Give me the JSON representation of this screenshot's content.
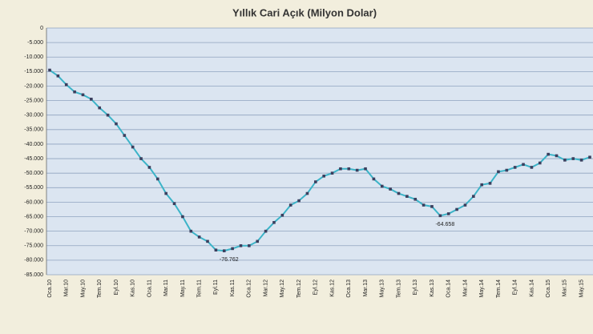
{
  "chart_data": {
    "type": "line",
    "title": "Yıllık Cari Açık (Milyon Dolar)",
    "categories": [
      "Oca.10",
      null,
      "Mar.10",
      null,
      "May.10",
      null,
      "Tem.10",
      null,
      "Eyl.10",
      null,
      "Kas.10",
      null,
      "Oca.11",
      null,
      "Mar.11",
      null,
      "May.11",
      null,
      "Tem.11",
      null,
      "Eyl.11",
      null,
      "Kas.11",
      null,
      "Oca.12",
      null,
      "Mar.12",
      null,
      "May.12",
      null,
      "Tem.12",
      null,
      "Eyl.12",
      null,
      "Kas.12",
      null,
      "Oca.13",
      null,
      "Mar.13",
      null,
      "May.13",
      null,
      "Tem.13",
      null,
      "Eyl.13",
      null,
      "Kas.13",
      null,
      "Oca.14",
      null,
      "Mar.14",
      null,
      "May.14",
      null,
      "Tem.14",
      null,
      "Eyl.14",
      null,
      "Kas.14",
      null,
      "Oca.15",
      null,
      "Mar.15",
      null,
      "May.15",
      null
    ],
    "values": [
      -14500,
      -16500,
      -19500,
      -22000,
      -23000,
      -24500,
      -27500,
      -30000,
      -33000,
      -37000,
      -41000,
      -45000,
      -48000,
      -52000,
      -57000,
      -60500,
      -65000,
      -70000,
      -72000,
      -73500,
      -76500,
      -76762,
      -76000,
      -75000,
      -75000,
      -73500,
      -70000,
      -67000,
      -64500,
      -61000,
      -59500,
      -57000,
      -53000,
      -51000,
      -50000,
      -48500,
      -48500,
      -49000,
      -48500,
      -52000,
      -54500,
      -55500,
      -57000,
      -58000,
      -59000,
      -61000,
      -61500,
      -64658,
      -64000,
      -62500,
      -61000,
      -58000,
      -54000,
      -53500,
      -49500,
      -49000,
      -48000,
      -47000,
      -48000,
      -46500,
      -43500,
      -44000,
      -45500,
      -45000,
      -45500,
      -44500
    ],
    "value_labels": [
      null,
      null,
      null,
      null,
      null,
      null,
      null,
      null,
      null,
      null,
      null,
      null,
      null,
      null,
      null,
      null,
      null,
      null,
      null,
      null,
      null,
      "-76.762",
      null,
      null,
      null,
      null,
      null,
      null,
      null,
      null,
      null,
      null,
      null,
      null,
      null,
      null,
      null,
      null,
      null,
      null,
      null,
      null,
      null,
      null,
      null,
      null,
      null,
      "-64.658",
      null,
      null,
      null,
      null,
      null,
      null,
      null,
      null,
      null,
      null,
      null,
      null,
      null,
      null,
      null,
      null,
      null,
      null
    ],
    "color": "#3cb4c8",
    "marker_color": "#3b3f5e",
    "ylim": [
      -85000,
      0
    ],
    "yticks": [
      0,
      {
        "value": -5000,
        "label": "-5.000"
      },
      {
        "value": -10000,
        "label": "-10.000"
      },
      {
        "value": -15000,
        "label": "-15.000"
      },
      {
        "value": -20000,
        "label": "-20.000"
      },
      {
        "value": -25000,
        "label": "-25.000"
      },
      {
        "value": -30000,
        "label": "-30.000"
      },
      {
        "value": -35000,
        "label": "-35.000"
      },
      {
        "value": -40000,
        "label": "-40.000"
      },
      {
        "value": -45000,
        "label": "-45.000"
      },
      {
        "value": -50000,
        "label": "-50.000"
      },
      {
        "value": -55000,
        "label": "-55.000"
      },
      {
        "value": -60000,
        "label": "-60.000"
      },
      {
        "value": -65000,
        "label": "-65.000"
      },
      {
        "value": -70000,
        "label": "-70.000"
      },
      {
        "value": -75000,
        "label": "-75.000"
      },
      {
        "value": -80000,
        "label": "-80.000"
      },
      {
        "value": -85000,
        "label": "-85.000"
      }
    ],
    "grid": true
  }
}
